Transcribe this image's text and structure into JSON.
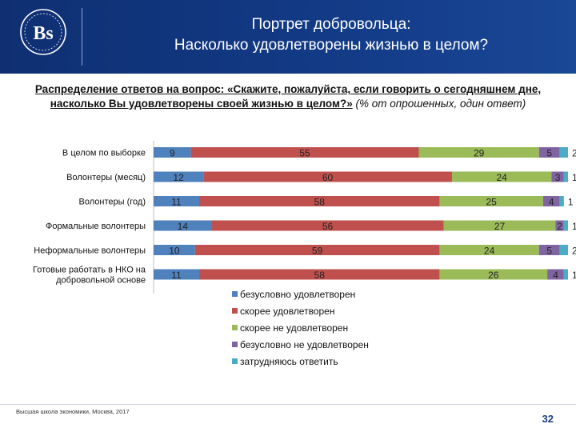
{
  "header": {
    "title_line1": "Портрет добровольца:",
    "title_line2": "Насколько удовлетворены жизнью в целом?",
    "logo_name": "hse-logo"
  },
  "subtitle": {
    "question": "Распределение ответов на вопрос: «Скажите, пожалуйста, если говорить о сегодняшнем дне, насколько Вы удовлетворены своей жизнью в целом?»",
    "note": "(% от опрошенных, один ответ)"
  },
  "footer": {
    "text": "Высшая школа экономики, Москва, 2017",
    "page": "32"
  },
  "chart_data": {
    "type": "bar",
    "orientation": "horizontal",
    "stacked": true,
    "categories": [
      "В целом по выборке",
      "Волонтеры (месяц)",
      "Волонтеры (год)",
      "Формальные волонтеры",
      "Неформальные волонтеры",
      "Готовые работать в НКО на добровольной основе"
    ],
    "series": [
      {
        "name": "безусловно удовлетворен",
        "color": "#4f81bd",
        "values": [
          9,
          12,
          11,
          14,
          10,
          11
        ]
      },
      {
        "name": "скорее удовлетворен",
        "color": "#c0504d",
        "values": [
          55,
          60,
          58,
          56,
          59,
          58
        ]
      },
      {
        "name": "скорее не удовлетворен",
        "color": "#9bbb59",
        "values": [
          29,
          24,
          25,
          27,
          24,
          26
        ]
      },
      {
        "name": "безусловно не удовлетворен",
        "color": "#8064a2",
        "values": [
          5,
          3,
          4,
          2,
          5,
          4
        ]
      },
      {
        "name": "затрудняюсь ответить",
        "color": "#4bacc6",
        "values": [
          2,
          1,
          1,
          1,
          2,
          1
        ]
      }
    ],
    "xlim": [
      0,
      100
    ],
    "legend_position": "bottom",
    "grid": false
  }
}
